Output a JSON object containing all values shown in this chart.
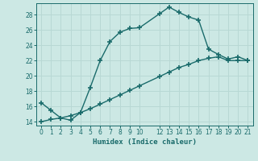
{
  "xlabel": "Humidex (Indice chaleur)",
  "line1_x": [
    0,
    1,
    2,
    3,
    4,
    5,
    6,
    7,
    8,
    9,
    10,
    12,
    13,
    14,
    15,
    16,
    17,
    18,
    19,
    20,
    21
  ],
  "line1_y": [
    16.5,
    15.5,
    14.5,
    14.2,
    15.2,
    18.5,
    22.0,
    24.5,
    25.7,
    26.2,
    26.3,
    28.1,
    29.0,
    28.3,
    27.7,
    27.3,
    23.5,
    22.8,
    22.2,
    22.5,
    22.0
  ],
  "line2_x": [
    0,
    1,
    2,
    3,
    4,
    5,
    6,
    7,
    8,
    9,
    10,
    12,
    13,
    14,
    15,
    16,
    17,
    18,
    19,
    20,
    21
  ],
  "line2_y": [
    14.0,
    14.3,
    14.5,
    14.8,
    15.2,
    15.7,
    16.3,
    16.9,
    17.5,
    18.1,
    18.7,
    19.9,
    20.5,
    21.1,
    21.5,
    22.0,
    22.3,
    22.5,
    22.0,
    22.0,
    22.0
  ],
  "line_color": "#1a6b6b",
  "bg_color": "#cce8e4",
  "grid_color": "#b8d8d4",
  "xlim": [
    -0.5,
    21.5
  ],
  "ylim": [
    13.5,
    29.5
  ],
  "yticks": [
    14,
    16,
    18,
    20,
    22,
    24,
    26,
    28
  ],
  "xticks": [
    0,
    1,
    2,
    3,
    4,
    5,
    6,
    7,
    8,
    9,
    10,
    12,
    13,
    14,
    15,
    16,
    17,
    18,
    19,
    20,
    21
  ],
  "marker": "+",
  "markersize": 4.0,
  "linewidth": 1.0
}
